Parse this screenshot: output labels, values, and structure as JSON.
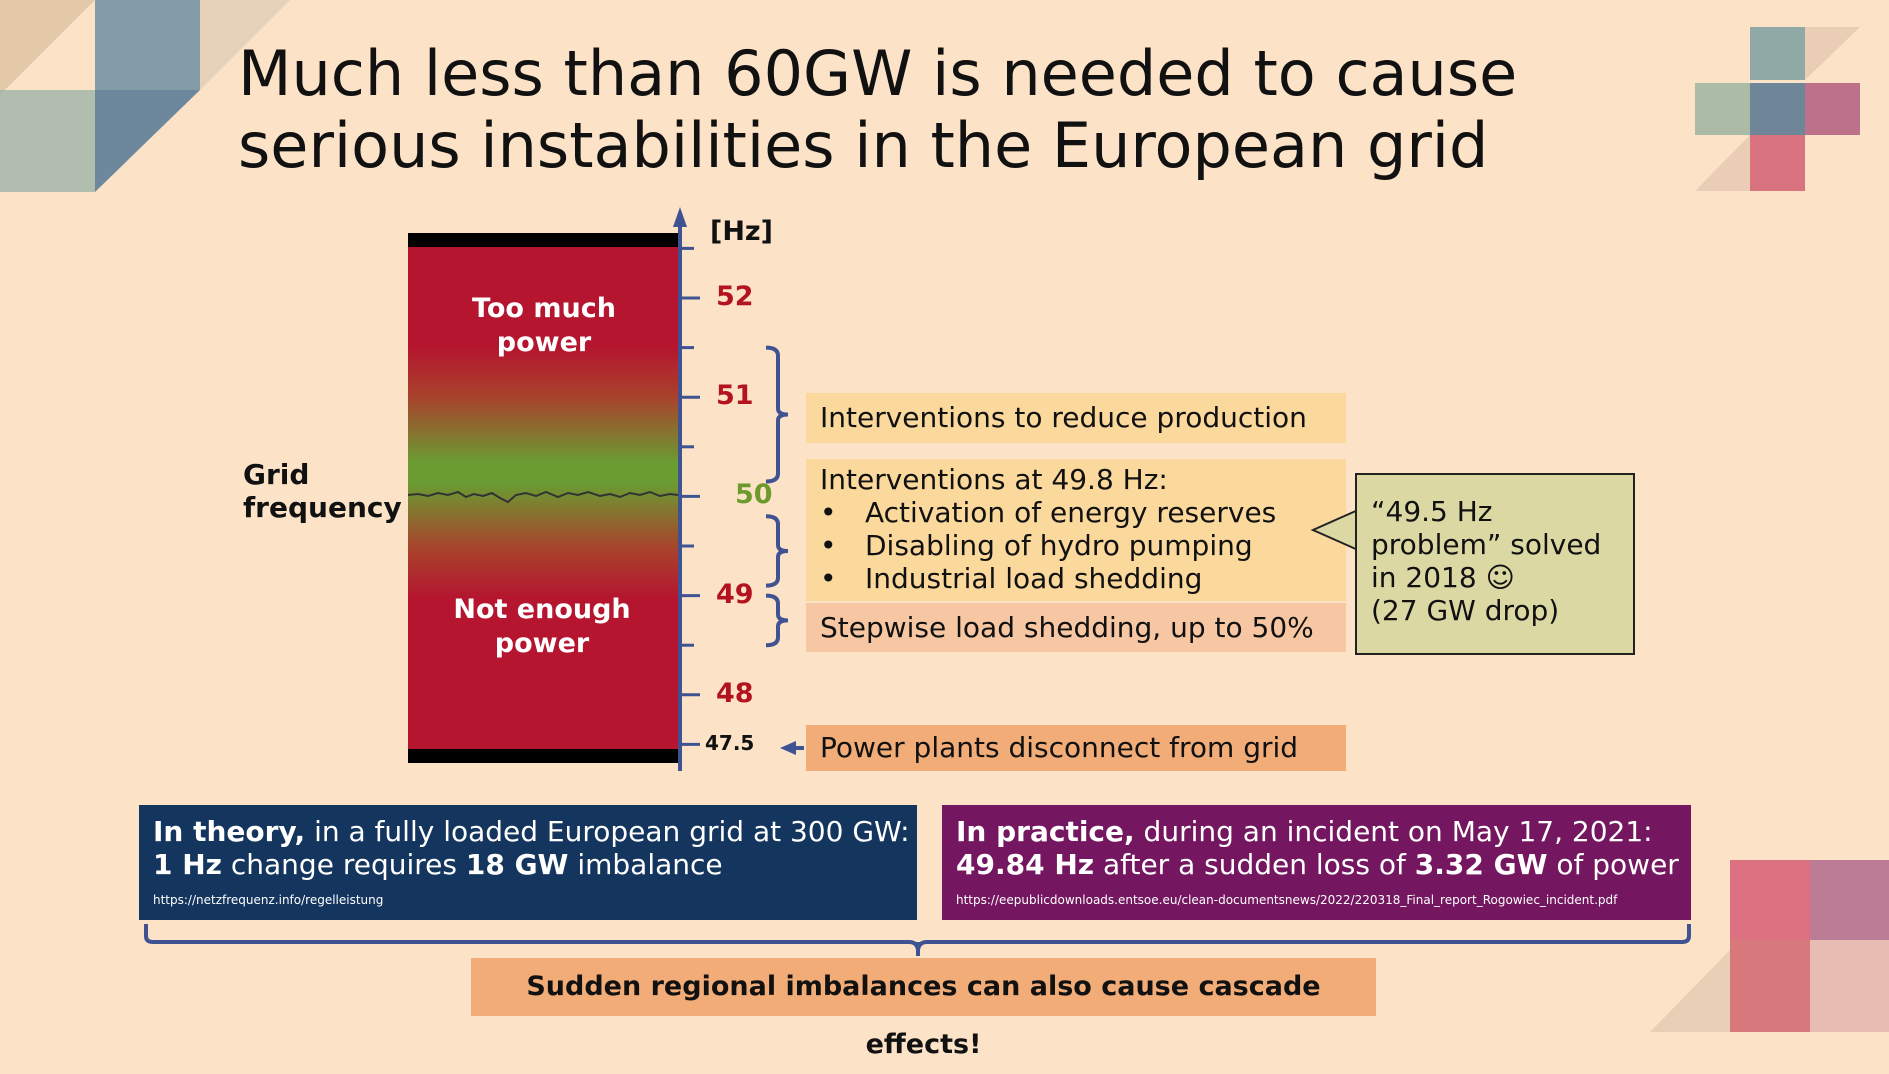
{
  "title": {
    "line1": "Much less than 60GW is needed to cause",
    "line2": "serious instabilities in the European grid"
  },
  "axis": {
    "unit_label": "[Hz]",
    "ticks": [
      {
        "value": 52,
        "label": "52",
        "color": "#b3121f"
      },
      {
        "value": 51,
        "label": "51",
        "color": "#b3121f"
      },
      {
        "value": 50,
        "label": "50",
        "color": "#6d9a2c"
      },
      {
        "value": 49,
        "label": "49",
        "color": "#b3121f"
      },
      {
        "value": 48,
        "label": "48",
        "color": "#b3121f"
      },
      {
        "value": 47.5,
        "label": "47.5",
        "color": "#111111"
      }
    ]
  },
  "bar": {
    "top_label": "Too much power",
    "bottom_label": "Not enough power",
    "colors": {
      "danger": "#b5152f",
      "ok": "#6a9c32",
      "cap": "#000000"
    }
  },
  "side_label": {
    "line1": "Grid",
    "line2": "frequency"
  },
  "boxes": {
    "reduce_production": "Interventions to reduce production",
    "interventions_heading": "Interventions at 49.8 Hz:",
    "interventions_items": [
      "Activation of energy reserves",
      "Disabling of hydro pumping",
      "Industrial load shedding"
    ],
    "stepwise": "Stepwise load shedding, up to 50%",
    "disconnect": "Power plants disconnect from grid"
  },
  "callout": {
    "line1": "“49.5 Hz",
    "line2": "problem” solved",
    "line3": "in 2018 ☺",
    "line4": "(27 GW drop)"
  },
  "theory": {
    "bold1": "In theory,",
    "text1": " in a fully loaded European grid at 300 GW:",
    "bold2": "1 Hz",
    "text2": " change requires ",
    "bold3": "18 GW",
    "text3": " imbalance",
    "source": "https://netzfrequenz.info/regelleistung",
    "color": "#13355e"
  },
  "practice": {
    "bold1": "In practice,",
    "text1": " during an incident on May 17, 2021:",
    "bold2": "49.84 Hz",
    "text2": " after a sudden loss of ",
    "bold3": "3.32 GW",
    "text3": " of power",
    "source": "https://eepublicdownloads.entsoe.eu/clean-documentsnews/2022/220318_Final_report_Rogowiec_incident.pdf",
    "color": "#741760"
  },
  "conclusion": "Sudden regional imbalances can also cause cascade effects!",
  "colors": {
    "background": "#fce3c8",
    "axis": "#3f5393",
    "box_yellow": "#fbd89b",
    "box_peach": "#f7c7a3",
    "box_orange": "#f1ac78",
    "callout": "#dcd8a3"
  }
}
